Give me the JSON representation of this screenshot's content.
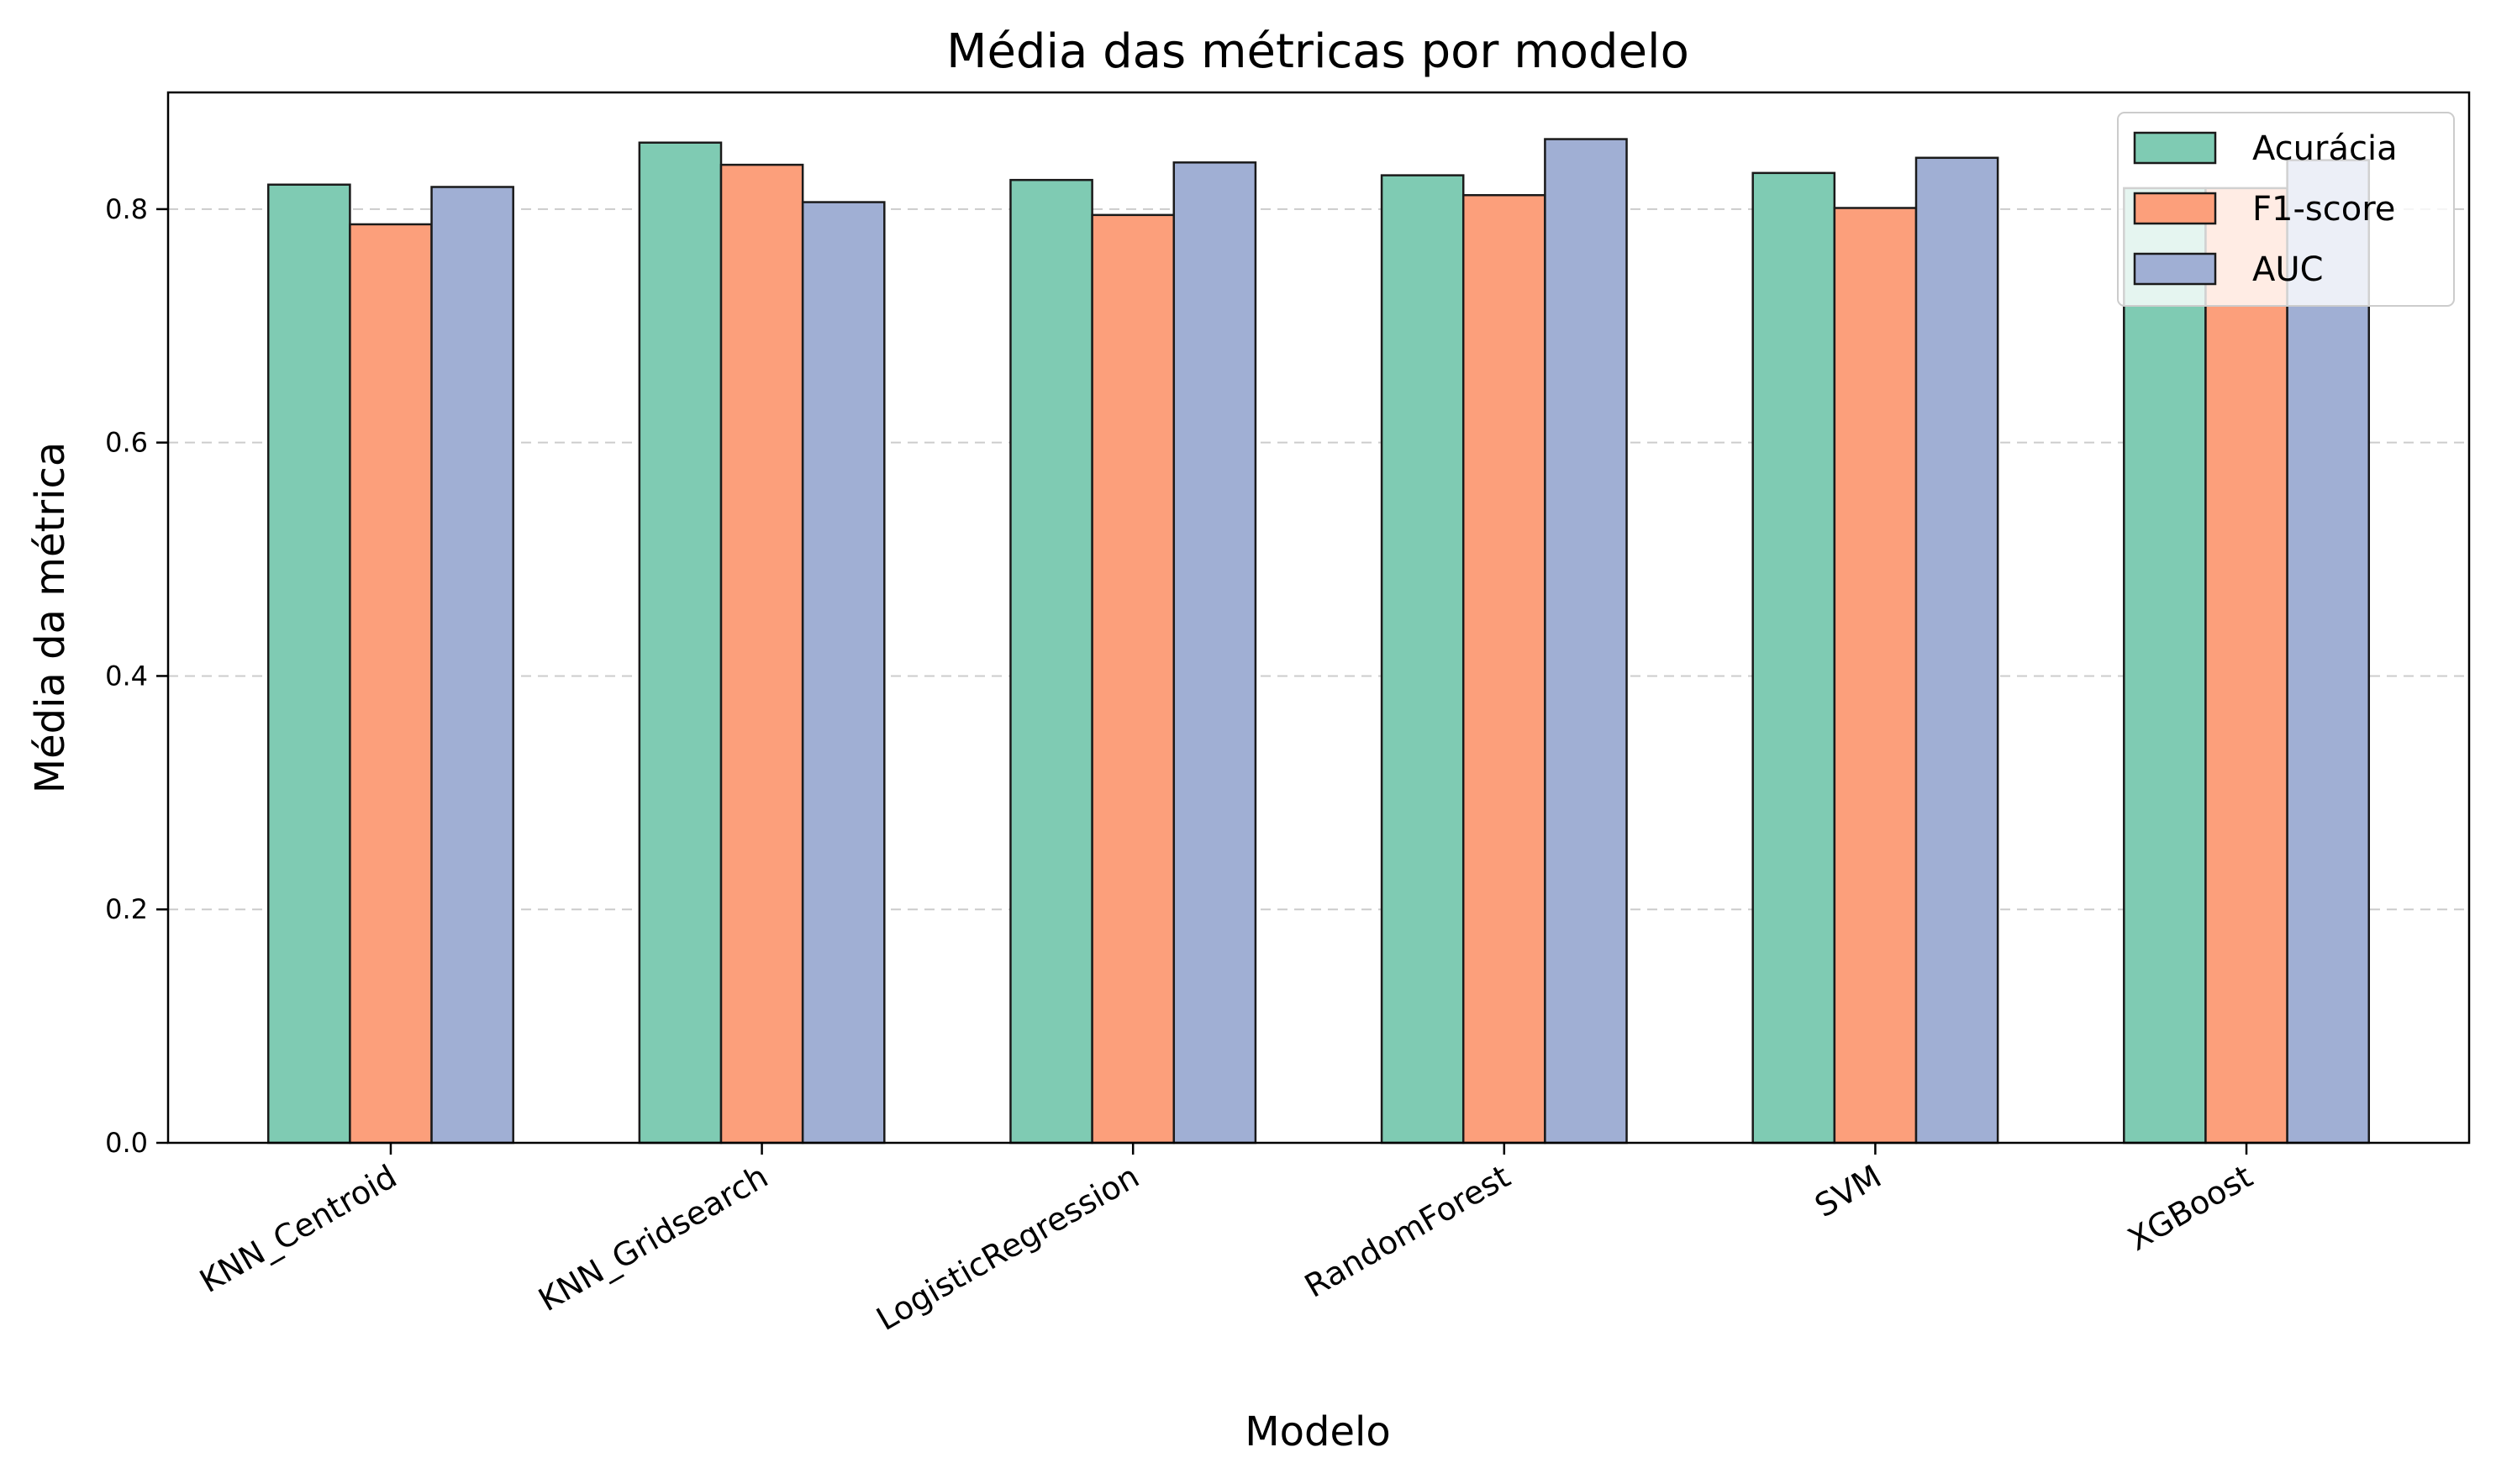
{
  "chart_data": {
    "type": "bar",
    "title": "Média das métricas por modelo",
    "xlabel": "Modelo",
    "ylabel": "Média da métrica",
    "ylim": [
      0,
      0.9
    ],
    "yticks": [
      "0.0",
      "0.2",
      "0.4",
      "0.6",
      "0.8"
    ],
    "grid": "y-dashed",
    "legend_position": "top-right",
    "categories": [
      "KNN_Centroid",
      "KNN_Gridsearch",
      "LogisticRegression",
      "RandomForest",
      "SVM",
      "XGBoost"
    ],
    "series": [
      {
        "name": "Acurácia",
        "color": "#7fcbb3",
        "values": [
          0.821,
          0.857,
          0.825,
          0.829,
          0.831,
          0.818
        ]
      },
      {
        "name": "F1-score",
        "color": "#fc9f7b",
        "values": [
          0.787,
          0.838,
          0.795,
          0.812,
          0.801,
          0.818
        ]
      },
      {
        "name": "AUC",
        "color": "#a0afd4",
        "values": [
          0.819,
          0.806,
          0.84,
          0.86,
          0.844,
          0.842
        ]
      }
    ]
  }
}
